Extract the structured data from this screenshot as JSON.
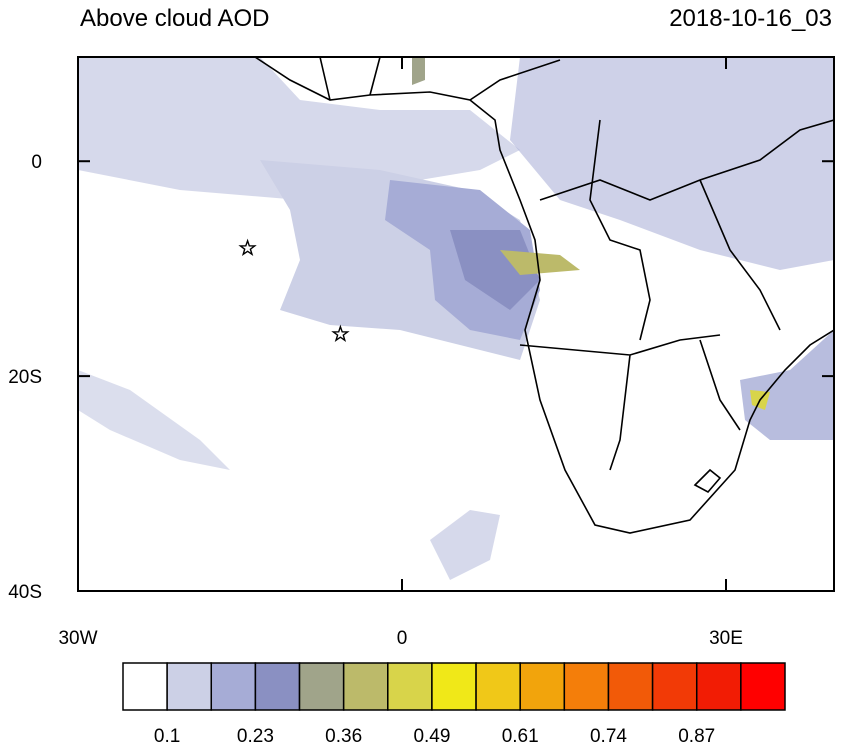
{
  "header": {
    "title": "Above cloud AOD",
    "date": "2018-10-16_03"
  },
  "map": {
    "lon_range": [
      -30,
      40
    ],
    "lat_range": [
      -40,
      9.7
    ],
    "lat_ticks": [
      {
        "value": 0,
        "label": "0"
      },
      {
        "value": -20,
        "label": "20S"
      },
      {
        "value": -40,
        "label": "40S"
      }
    ],
    "lon_ticks": [
      {
        "value": -30,
        "label": "30W"
      },
      {
        "value": 0,
        "label": "0"
      },
      {
        "value": 30,
        "label": "30E"
      }
    ],
    "markers": [
      {
        "lon": -14.3,
        "lat": -8.1
      },
      {
        "lon": -5.7,
        "lat": -16.1
      }
    ]
  },
  "colorbar": {
    "colors": [
      "#ffffff",
      "#ccd0e6",
      "#a6acd6",
      "#8a90c2",
      "#a0a48a",
      "#bcba6a",
      "#d8d44a",
      "#f0e818",
      "#f0c818",
      "#f2a40c",
      "#f47e0a",
      "#f25a08",
      "#f23a06",
      "#f21c04",
      "#ff0000"
    ],
    "labels": [
      0.1,
      0.23,
      0.36,
      0.49,
      0.61,
      0.74,
      0.87
    ]
  }
}
